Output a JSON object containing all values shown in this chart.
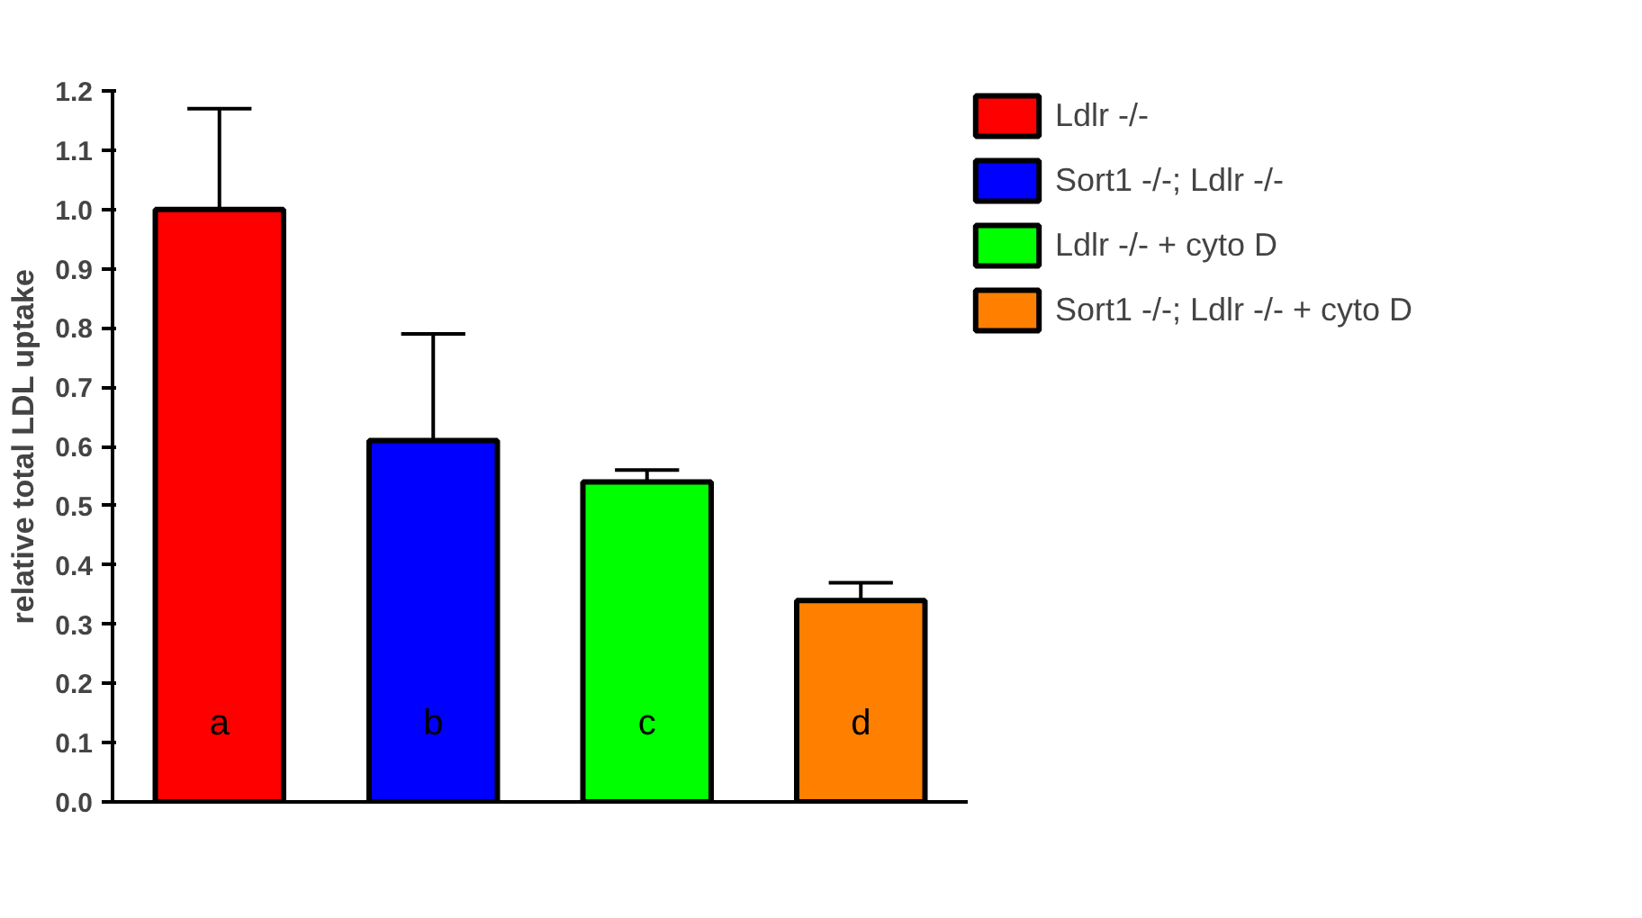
{
  "chart_data": {
    "type": "bar",
    "ylabel": "relative total LDL uptake",
    "categories": [
      null,
      null,
      null,
      null
    ],
    "series": [
      {
        "name": "Ldlr -/-",
        "color": "#ff0000",
        "values": [
          1.0,
          null,
          null,
          null
        ],
        "errors": [
          [
            1.0,
            1.17
          ],
          null,
          null,
          null
        ]
      },
      {
        "name": "Sort1 -/-; Ldlr -/-",
        "color": "#0000ff",
        "values": [
          null,
          0.61,
          null,
          null
        ],
        "errors": [
          null,
          [
            0.61,
            0.79
          ],
          null,
          null
        ]
      },
      {
        "name": "Ldlr -/- + cyto D",
        "color": "#00ff00",
        "values": [
          null,
          null,
          0.54,
          null
        ],
        "errors": [
          null,
          null,
          [
            0.54,
            0.56
          ],
          null
        ]
      },
      {
        "name": "Sort1 -/-; Ldlr -/- + cyto D",
        "color": "#ff8000",
        "values": [
          null,
          null,
          null,
          0.34
        ],
        "errors": [
          null,
          null,
          null,
          [
            0.34,
            0.37
          ]
        ]
      }
    ],
    "annotations": [
      "a",
      "b",
      "c",
      "d"
    ],
    "ylim": [
      0,
      1.2
    ],
    "yticks": [
      {
        "value": 0,
        "label": "0.0"
      },
      {
        "value": 0.1,
        "label": "0.1"
      },
      {
        "value": 0.2,
        "label": "0.2"
      },
      {
        "value": 0.3,
        "label": "0.3"
      },
      {
        "value": 0.4,
        "label": "0.4"
      },
      {
        "value": 0.5,
        "label": "0.5"
      },
      {
        "value": 0.6,
        "label": "0.6"
      },
      {
        "value": 0.7,
        "label": "0.7"
      },
      {
        "value": 0.8,
        "label": "0.8"
      },
      {
        "value": 0.9,
        "label": "0.9"
      },
      {
        "value": 1.0,
        "label": "1.0"
      },
      {
        "value": 1.1,
        "label": "1.1"
      },
      {
        "value": 1.2,
        "label": "1.2"
      }
    ],
    "grid": false,
    "legend": "right"
  }
}
